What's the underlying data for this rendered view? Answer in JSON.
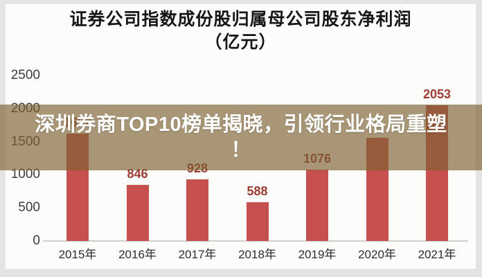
{
  "title": {
    "line1": "证券公司指数成份股归属母公司股东净利润",
    "line2": "（亿元）"
  },
  "banner": {
    "line1": "深圳券商TOP10榜单揭晓，引领行业格局重塑",
    "line2": "！",
    "bg_color": "rgba(124,97,50,0.66)",
    "text_color": "#ffffff"
  },
  "chart_data": {
    "type": "bar",
    "title": "证券公司指数成份股归属母公司股东净利润（亿元）",
    "categories": [
      "2015年",
      "2016年",
      "2017年",
      "2018年",
      "2019年",
      "2020年",
      "2021年"
    ],
    "values": [
      1622,
      846,
      928,
      588,
      1076,
      1560,
      2053
    ],
    "value_labels": [
      "1622",
      "846",
      "928",
      "588",
      "1076",
      "",
      "2053"
    ],
    "yticks": [
      2500,
      2000,
      1500,
      1000,
      500,
      0
    ],
    "ylim": [
      0,
      2500
    ],
    "xlabel": "",
    "ylabel": "",
    "grid": false,
    "legend": "none",
    "bar_color": "#c5504e",
    "value_label_color": "#9c3a33",
    "axis_color": "#cfcfcd"
  }
}
